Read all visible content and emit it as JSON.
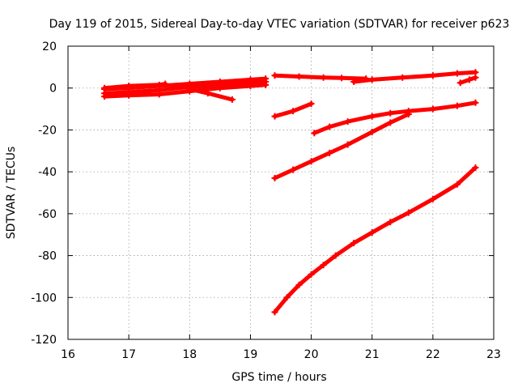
{
  "chart_data": {
    "type": "scatter",
    "title": "Day 119 of 2015, Sidereal Day-to-day VTEC variation (SDTVAR) for receiver p623",
    "xlabel": "GPS time / hours",
    "ylabel": "SDTVAR / TECUs",
    "xlim": [
      16,
      23
    ],
    "ylim": [
      -120,
      20
    ],
    "x_ticks": [
      16,
      17,
      18,
      19,
      20,
      21,
      22,
      23
    ],
    "y_ticks": [
      20,
      0,
      -20,
      -40,
      -60,
      -80,
      -100,
      -120
    ],
    "x_tick_labels": [
      "16",
      "17",
      "18",
      "19",
      "20",
      "21",
      "22",
      "23"
    ],
    "y_tick_labels": [
      "20",
      "0",
      "-20",
      "-40",
      "-60",
      "-80",
      "-100",
      "-120"
    ],
    "grid": true,
    "legend": "none",
    "marker": "plus",
    "color": "#ff0000",
    "series": [
      {
        "x": [
          16.6,
          17.0,
          17.5,
          18.0,
          18.5,
          19.0,
          19.25
        ],
        "y": [
          -2.5,
          -2.0,
          -1.0,
          0.5,
          1.5,
          2.5,
          3.0
        ]
      },
      {
        "x": [
          16.6,
          17.0,
          17.5,
          18.0,
          18.5,
          19.0,
          19.25
        ],
        "y": [
          -0.5,
          0.0,
          1.0,
          2.0,
          3.0,
          4.0,
          4.5
        ]
      },
      {
        "x": [
          16.6,
          17.0,
          17.5,
          18.0,
          18.5,
          19.0,
          19.25
        ],
        "y": [
          -4.0,
          -3.5,
          -3.0,
          -1.5,
          0.0,
          1.0,
          1.5
        ]
      },
      {
        "x": [
          16.6,
          17.0,
          17.5,
          17.6
        ],
        "y": [
          0.0,
          1.0,
          1.5,
          2.0
        ]
      },
      {
        "x": [
          18.0,
          18.3,
          18.7
        ],
        "y": [
          -0.5,
          -2.5,
          -5.5
        ]
      },
      {
        "x": [
          19.4,
          19.8,
          20.2,
          20.5,
          20.9
        ],
        "y": [
          6.0,
          5.5,
          5.0,
          4.8,
          4.5
        ]
      },
      {
        "x": [
          19.4,
          19.7,
          20.0
        ],
        "y": [
          -13.5,
          -11.0,
          -7.5
        ]
      },
      {
        "x": [
          20.7,
          21.0,
          21.5,
          22.0,
          22.4,
          22.7
        ],
        "y": [
          3.0,
          4.0,
          5.0,
          6.0,
          7.0,
          7.5
        ]
      },
      {
        "x": [
          22.45,
          22.6,
          22.7
        ],
        "y": [
          2.5,
          4.0,
          5.0
        ]
      },
      {
        "x": [
          20.05,
          20.3,
          20.6,
          21.0,
          21.3,
          21.6,
          22.0,
          22.4,
          22.7
        ],
        "y": [
          -21.5,
          -18.5,
          -16.0,
          -13.5,
          -12.0,
          -11.0,
          -10.0,
          -8.5,
          -7.0
        ]
      },
      {
        "x": [
          19.4,
          19.7,
          20.0,
          20.3,
          20.6,
          21.0,
          21.3,
          21.6
        ],
        "y": [
          -43.0,
          -39.0,
          -35.0,
          -31.0,
          -27.0,
          -21.0,
          -16.5,
          -12.5
        ]
      },
      {
        "x": [
          19.4,
          19.6,
          19.8,
          20.0,
          20.2,
          20.4,
          20.7,
          21.0,
          21.3,
          21.6,
          22.0,
          22.4,
          22.7
        ],
        "y": [
          -107.0,
          -100.0,
          -94.0,
          -89.0,
          -84.5,
          -80.0,
          -74.0,
          -69.0,
          -64.0,
          -59.5,
          -53.0,
          -46.0,
          -38.0
        ]
      }
    ]
  }
}
